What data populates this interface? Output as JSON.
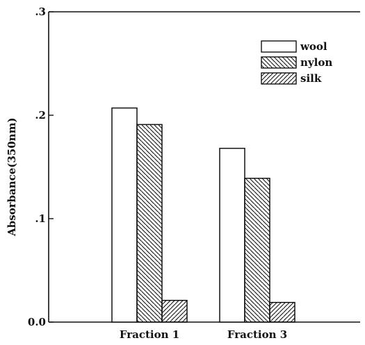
{
  "chart_data": {
    "type": "bar",
    "title": "",
    "xlabel": "",
    "ylabel": "Absorbance(350nm)",
    "ylim": [
      0.0,
      0.3
    ],
    "yticks": [
      0.0,
      0.1,
      0.2,
      0.3
    ],
    "ytick_labels": [
      "0.0",
      ".1",
      ".2",
      ".3"
    ],
    "categories": [
      "Fraction 1",
      "Fraction 3"
    ],
    "series": [
      {
        "name": "wool",
        "values": [
          0.207,
          0.168
        ],
        "pattern": "none"
      },
      {
        "name": "nylon",
        "values": [
          0.191,
          0.139
        ],
        "pattern": "hatch-down"
      },
      {
        "name": "silk",
        "values": [
          0.021,
          0.019
        ],
        "pattern": "hatch-up"
      }
    ],
    "legend": {
      "position": "top-right"
    },
    "grid": false
  }
}
